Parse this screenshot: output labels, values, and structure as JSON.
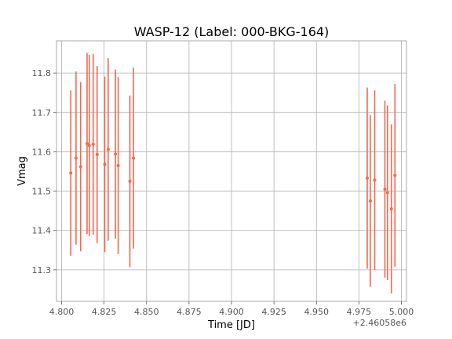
{
  "chart_data": {
    "type": "scatter",
    "title": "WASP-12 (Label: 000-BKG-164)",
    "xlabel": "Time [JD]",
    "ylabel": "Vmag",
    "x_offset_label": "+2.46058e6",
    "xlim": [
      4.797,
      5.003
    ],
    "ylim": [
      11.22,
      11.882
    ],
    "xticks": [
      4.8,
      4.825,
      4.85,
      4.875,
      4.9,
      4.925,
      4.95,
      4.975,
      5.0
    ],
    "xtick_labels": [
      "4.800",
      "4.825",
      "4.850",
      "4.875",
      "4.900",
      "4.925",
      "4.950",
      "4.975",
      "5.000"
    ],
    "yticks": [
      11.3,
      11.4,
      11.5,
      11.6,
      11.7,
      11.8
    ],
    "ytick_labels": [
      "11.3",
      "11.4",
      "11.5",
      "11.6",
      "11.7",
      "11.8"
    ],
    "grid": true,
    "marker_color": "#f26a4f",
    "series": [
      {
        "points": [
          {
            "x": 4.8054,
            "y": 11.546,
            "yerr": 0.21
          },
          {
            "x": 4.8085,
            "y": 11.584,
            "yerr": 0.22
          },
          {
            "x": 4.8112,
            "y": 11.562,
            "yerr": 0.215
          },
          {
            "x": 4.815,
            "y": 11.621,
            "yerr": 0.23
          },
          {
            "x": 4.8163,
            "y": 11.616,
            "yerr": 0.23
          },
          {
            "x": 4.8186,
            "y": 11.619,
            "yerr": 0.23
          },
          {
            "x": 4.8209,
            "y": 11.593,
            "yerr": 0.225
          },
          {
            "x": 4.8254,
            "y": 11.568,
            "yerr": 0.223
          },
          {
            "x": 4.8274,
            "y": 11.606,
            "yerr": 0.232
          },
          {
            "x": 4.8317,
            "y": 11.594,
            "yerr": 0.215
          },
          {
            "x": 4.8333,
            "y": 11.565,
            "yerr": 0.225
          },
          {
            "x": 4.8402,
            "y": 11.525,
            "yerr": 0.218
          },
          {
            "x": 4.8423,
            "y": 11.584,
            "yerr": 0.23
          },
          {
            "x": 4.9799,
            "y": 11.533,
            "yerr": 0.23
          },
          {
            "x": 4.9817,
            "y": 11.475,
            "yerr": 0.218
          },
          {
            "x": 4.9843,
            "y": 11.528,
            "yerr": 0.228
          },
          {
            "x": 4.9903,
            "y": 11.505,
            "yerr": 0.225
          },
          {
            "x": 4.9918,
            "y": 11.496,
            "yerr": 0.222
          },
          {
            "x": 4.9941,
            "y": 11.455,
            "yerr": 0.215
          },
          {
            "x": 4.9962,
            "y": 11.54,
            "yerr": 0.232
          }
        ]
      }
    ]
  }
}
